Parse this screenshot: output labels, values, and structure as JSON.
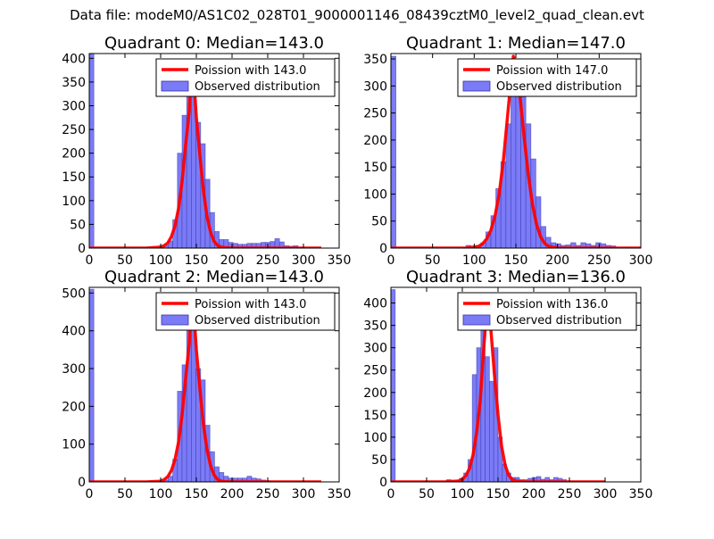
{
  "figure": {
    "suptitle": "Data file: modeM0/AS1C02_028T01_9000001146_08439cztM0_level2_quad_clean.evt"
  },
  "colors": {
    "histogram_fill": "#7b7bf7",
    "histogram_edge": "#3333aa",
    "poisson_line": "#ff0000"
  },
  "chart_data": [
    {
      "type": "bar",
      "title": "Quadrant 0: Median=143.0",
      "xlim": [
        0,
        350
      ],
      "ylim": [
        0,
        410
      ],
      "xticks": [
        0,
        50,
        100,
        150,
        200,
        250,
        300,
        350
      ],
      "yticks": [
        0,
        50,
        100,
        150,
        200,
        250,
        300,
        350,
        400
      ],
      "legend": {
        "position": "top-right",
        "entries": [
          "Poission with 143.0",
          "Observed distribution"
        ]
      },
      "series": [
        {
          "name": "Observed distribution",
          "kind": "histogram",
          "bin_edges": [
            0,
            6.5,
            13,
            19.5,
            26,
            32.5,
            39,
            45.5,
            52,
            58.5,
            65,
            71.5,
            78,
            84.5,
            91,
            97.5,
            104,
            110.5,
            117,
            123.5,
            130,
            136.5,
            143,
            149.5,
            156,
            162.5,
            169,
            175.5,
            182,
            188.5,
            195,
            201.5,
            208,
            214.5,
            221,
            227.5,
            234,
            240.5,
            247,
            253.5,
            260,
            266.5,
            273,
            279.5,
            286,
            292.5,
            299,
            305.5,
            312,
            318.5,
            325
          ],
          "counts": [
            410,
            0,
            0,
            0,
            0,
            0,
            0,
            0,
            0,
            0,
            0,
            0,
            0,
            0,
            0,
            0,
            5,
            15,
            60,
            200,
            280,
            390,
            330,
            265,
            220,
            145,
            75,
            35,
            18,
            18,
            12,
            10,
            8,
            8,
            10,
            10,
            10,
            12,
            12,
            14,
            20,
            13,
            5,
            4,
            5,
            2,
            0,
            0,
            0,
            0
          ]
        },
        {
          "name": "Poission with 143.0",
          "kind": "line",
          "x": [
            0,
            80,
            100,
            105,
            110,
            115,
            120,
            125,
            130,
            135,
            140,
            143,
            146,
            150,
            155,
            160,
            165,
            170,
            175,
            180,
            185,
            190,
            200,
            250,
            325
          ],
          "y": [
            0,
            0,
            2,
            5,
            11,
            24,
            46,
            83,
            140,
            218,
            287,
            392,
            370,
            275,
            195,
            120,
            66,
            33,
            14,
            5,
            2,
            1,
            0,
            0,
            0
          ]
        }
      ]
    },
    {
      "type": "bar",
      "title": "Quadrant 1: Median=147.0",
      "xlim": [
        0,
        300
      ],
      "ylim": [
        0,
        360
      ],
      "xticks": [
        0,
        50,
        100,
        150,
        200,
        250,
        300
      ],
      "yticks": [
        0,
        50,
        100,
        150,
        200,
        250,
        300,
        350
      ],
      "legend": {
        "position": "top-right",
        "entries": [
          "Poission with 147.0",
          "Observed distribution"
        ]
      },
      "series": [
        {
          "name": "Observed distribution",
          "kind": "histogram",
          "bin_edges": [
            0,
            6,
            12,
            18,
            24,
            30,
            36,
            42,
            48,
            54,
            60,
            66,
            72,
            78,
            84,
            90,
            96,
            102,
            108,
            114,
            120,
            126,
            132,
            138,
            144,
            150,
            156,
            162,
            168,
            174,
            180,
            186,
            192,
            198,
            204,
            210,
            216,
            222,
            228,
            234,
            240,
            246,
            252,
            258,
            264,
            270,
            276,
            282,
            288,
            294,
            300
          ],
          "counts": [
            355,
            0,
            0,
            0,
            0,
            0,
            0,
            0,
            0,
            0,
            0,
            0,
            0,
            0,
            0,
            5,
            2,
            5,
            10,
            30,
            60,
            110,
            160,
            230,
            340,
            320,
            280,
            230,
            165,
            95,
            40,
            20,
            10,
            8,
            5,
            6,
            10,
            5,
            10,
            8,
            5,
            10,
            8,
            5,
            4,
            0,
            0,
            0,
            0,
            0
          ]
        },
        {
          "name": "Poission with 147.0",
          "kind": "line",
          "x": [
            0,
            90,
            105,
            110,
            115,
            120,
            125,
            130,
            135,
            140,
            145,
            147,
            150,
            155,
            160,
            165,
            170,
            175,
            180,
            185,
            190,
            200,
            300
          ],
          "y": [
            0,
            0,
            3,
            8,
            17,
            33,
            60,
            100,
            162,
            244,
            325,
            355,
            340,
            280,
            205,
            135,
            80,
            43,
            20,
            8,
            3,
            0,
            0
          ]
        }
      ]
    },
    {
      "type": "bar",
      "title": "Quadrant 2: Median=143.0",
      "xlim": [
        0,
        350
      ],
      "ylim": [
        0,
        515
      ],
      "xticks": [
        0,
        50,
        100,
        150,
        200,
        250,
        300,
        350
      ],
      "yticks": [
        0,
        100,
        200,
        300,
        400,
        500
      ],
      "legend": {
        "position": "top-right",
        "entries": [
          "Poission with 143.0",
          "Observed distribution"
        ]
      },
      "series": [
        {
          "name": "Observed distribution",
          "kind": "histogram",
          "bin_edges": [
            0,
            6.5,
            13,
            19.5,
            26,
            32.5,
            39,
            45.5,
            52,
            58.5,
            65,
            71.5,
            78,
            84.5,
            91,
            97.5,
            104,
            110.5,
            117,
            123.5,
            130,
            136.5,
            143,
            149.5,
            156,
            162.5,
            169,
            175.5,
            182,
            188.5,
            195,
            201.5,
            208,
            214.5,
            221,
            227.5,
            234,
            240.5,
            247,
            253.5,
            260,
            266.5,
            273,
            279.5,
            286,
            292.5,
            299,
            305.5,
            312,
            318.5,
            325
          ],
          "counts": [
            510,
            0,
            0,
            0,
            0,
            0,
            0,
            0,
            0,
            0,
            0,
            0,
            0,
            0,
            0,
            0,
            5,
            15,
            60,
            240,
            310,
            460,
            430,
            300,
            270,
            150,
            80,
            40,
            25,
            15,
            10,
            10,
            10,
            10,
            15,
            10,
            8,
            5,
            3,
            0,
            0,
            0,
            0,
            0,
            0,
            0,
            0,
            0,
            0,
            0
          ]
        },
        {
          "name": "Poission with 143.0",
          "kind": "line",
          "x": [
            0,
            80,
            100,
            105,
            110,
            115,
            120,
            125,
            130,
            135,
            140,
            143,
            146,
            150,
            155,
            160,
            165,
            170,
            175,
            180,
            185,
            190,
            200,
            250,
            325
          ],
          "y": [
            0,
            0,
            2,
            6,
            14,
            30,
            58,
            105,
            177,
            275,
            365,
            490,
            465,
            350,
            245,
            150,
            85,
            42,
            18,
            6,
            2,
            1,
            0,
            0,
            0
          ]
        }
      ]
    },
    {
      "type": "bar",
      "title": "Quadrant 3: Median=136.0",
      "xlim": [
        0,
        350
      ],
      "ylim": [
        0,
        435
      ],
      "xticks": [
        0,
        50,
        100,
        150,
        200,
        250,
        300,
        350
      ],
      "yticks": [
        0,
        50,
        100,
        150,
        200,
        250,
        300,
        350,
        400
      ],
      "legend": {
        "position": "top-right",
        "entries": [
          "Poission with 136.0",
          "Observed distribution"
        ]
      },
      "series": [
        {
          "name": "Observed distribution",
          "kind": "histogram",
          "bin_edges": [
            0,
            6,
            12,
            18,
            24,
            30,
            36,
            42,
            48,
            54,
            60,
            66,
            72,
            78,
            84,
            90,
            96,
            102,
            108,
            114,
            120,
            126,
            132,
            138,
            144,
            150,
            156,
            162,
            168,
            174,
            180,
            186,
            192,
            198,
            204,
            210,
            216,
            222,
            228,
            234,
            240,
            246,
            252,
            258,
            264,
            270,
            276,
            282,
            288,
            294,
            300
          ],
          "counts": [
            430,
            0,
            0,
            0,
            0,
            0,
            0,
            0,
            0,
            0,
            0,
            0,
            0,
            5,
            2,
            3,
            8,
            20,
            50,
            240,
            300,
            395,
            280,
            225,
            300,
            100,
            40,
            20,
            10,
            10,
            5,
            5,
            8,
            10,
            12,
            6,
            10,
            5,
            10,
            8,
            5,
            0,
            0,
            0,
            0,
            0,
            0,
            0,
            0,
            0
          ]
        },
        {
          "name": "Poission with 136.0",
          "kind": "line",
          "x": [
            0,
            75,
            95,
            100,
            105,
            110,
            115,
            120,
            125,
            130,
            133,
            136,
            140,
            145,
            150,
            155,
            160,
            165,
            170,
            175,
            180,
            190,
            300
          ],
          "y": [
            0,
            0,
            2,
            6,
            14,
            30,
            60,
            110,
            180,
            300,
            360,
            420,
            340,
            240,
            150,
            80,
            37,
            15,
            5,
            2,
            1,
            0,
            0
          ]
        }
      ]
    }
  ]
}
